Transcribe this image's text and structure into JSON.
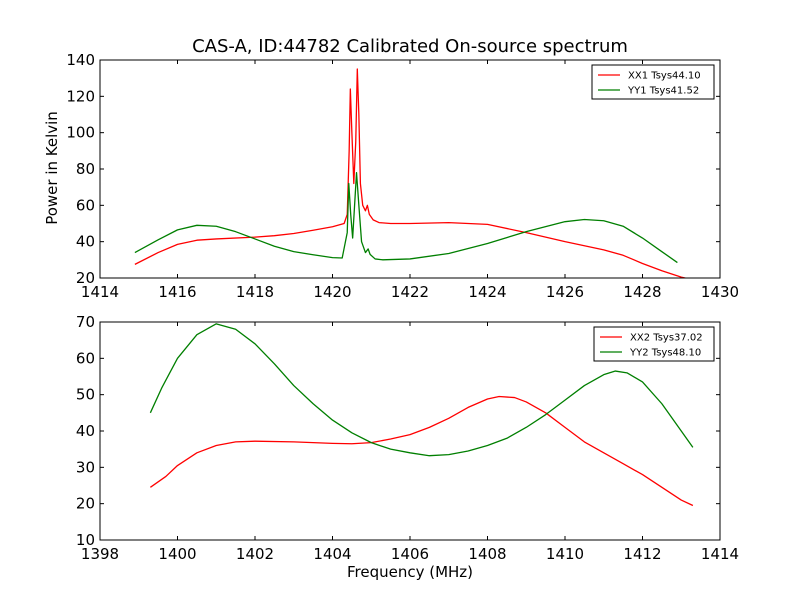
{
  "figure": {
    "title": "CAS-A, ID:44782 Calibrated On-source spectrum",
    "xlabel": "Frequency (MHz)",
    "ylabel": "Power in Kelvin"
  },
  "chart_data": [
    {
      "type": "line",
      "title": "CAS-A, ID:44782 Calibrated On-source spectrum",
      "ylabel": "Power in Kelvin",
      "xlabel": "",
      "xlim": [
        1414,
        1430
      ],
      "ylim": [
        20,
        140
      ],
      "xticks": [
        1414,
        1416,
        1418,
        1420,
        1422,
        1424,
        1426,
        1428,
        1430
      ],
      "yticks": [
        20,
        40,
        60,
        80,
        100,
        120,
        140
      ],
      "grid": false,
      "legend_position": "top-right",
      "series": [
        {
          "name": "XX1 Tsys44.10",
          "color": "#ff0000",
          "points": [
            [
              1414.9,
              27.5
            ],
            [
              1415.5,
              34
            ],
            [
              1416,
              38.5
            ],
            [
              1416.5,
              40.8
            ],
            [
              1417,
              41.5
            ],
            [
              1418,
              42.5
            ],
            [
              1418.5,
              43.3
            ],
            [
              1419,
              44.5
            ],
            [
              1419.5,
              46.3
            ],
            [
              1420,
              48.2
            ],
            [
              1420.3,
              50
            ],
            [
              1420.38,
              55
            ],
            [
              1420.43,
              90
            ],
            [
              1420.46,
              124
            ],
            [
              1420.5,
              100
            ],
            [
              1420.55,
              72
            ],
            [
              1420.6,
              95
            ],
            [
              1420.64,
              135
            ],
            [
              1420.68,
              110
            ],
            [
              1420.72,
              72
            ],
            [
              1420.78,
              60
            ],
            [
              1420.85,
              57
            ],
            [
              1420.9,
              60
            ],
            [
              1420.95,
              55
            ],
            [
              1421.05,
              52
            ],
            [
              1421.2,
              50.5
            ],
            [
              1421.5,
              50
            ],
            [
              1422,
              50
            ],
            [
              1423,
              50.5
            ],
            [
              1424,
              49.5
            ],
            [
              1425,
              45
            ],
            [
              1426,
              40
            ],
            [
              1427,
              35.5
            ],
            [
              1427.5,
              32.5
            ],
            [
              1428,
              28
            ],
            [
              1428.5,
              24
            ],
            [
              1429,
              20.5
            ],
            [
              1429.3,
              19
            ]
          ]
        },
        {
          "name": "YY1 Tsys41.52",
          "color": "#007f00",
          "points": [
            [
              1414.9,
              34
            ],
            [
              1415.5,
              41
            ],
            [
              1416,
              46.5
            ],
            [
              1416.5,
              49
            ],
            [
              1417,
              48.5
            ],
            [
              1417.5,
              45.5
            ],
            [
              1418,
              41.5
            ],
            [
              1418.5,
              37.5
            ],
            [
              1419,
              34.5
            ],
            [
              1419.5,
              32.8
            ],
            [
              1420,
              31.2
            ],
            [
              1420.25,
              31
            ],
            [
              1420.38,
              45
            ],
            [
              1420.42,
              72
            ],
            [
              1420.47,
              55
            ],
            [
              1420.52,
              42
            ],
            [
              1420.57,
              60
            ],
            [
              1420.62,
              78
            ],
            [
              1420.68,
              60
            ],
            [
              1420.75,
              40
            ],
            [
              1420.85,
              34
            ],
            [
              1420.92,
              36
            ],
            [
              1420.97,
              33
            ],
            [
              1421.1,
              30.5
            ],
            [
              1421.3,
              30
            ],
            [
              1422,
              30.5
            ],
            [
              1423,
              33.5
            ],
            [
              1424,
              39
            ],
            [
              1425,
              45.5
            ],
            [
              1426,
              51
            ],
            [
              1426.5,
              52.2
            ],
            [
              1427,
              51.5
            ],
            [
              1427.5,
              48.5
            ],
            [
              1428,
              42
            ],
            [
              1428.5,
              34.5
            ],
            [
              1428.9,
              28.5
            ]
          ]
        }
      ]
    },
    {
      "type": "line",
      "title": "",
      "xlabel": "Frequency (MHz)",
      "ylabel": "",
      "xlim": [
        1398,
        1414
      ],
      "ylim": [
        10,
        70
      ],
      "xticks": [
        1398,
        1400,
        1402,
        1404,
        1406,
        1408,
        1410,
        1412,
        1414
      ],
      "yticks": [
        10,
        20,
        30,
        40,
        50,
        60,
        70
      ],
      "grid": false,
      "legend_position": "top-right",
      "series": [
        {
          "name": "XX2 Tsys37.02",
          "color": "#ff0000",
          "points": [
            [
              1399.3,
              24.5
            ],
            [
              1399.7,
              27.5
            ],
            [
              1400,
              30.5
            ],
            [
              1400.5,
              34
            ],
            [
              1401,
              36
            ],
            [
              1401.5,
              37
            ],
            [
              1402,
              37.2
            ],
            [
              1403,
              37
            ],
            [
              1404,
              36.6
            ],
            [
              1404.5,
              36.5
            ],
            [
              1405,
              36.8
            ],
            [
              1405.5,
              37.8
            ],
            [
              1406,
              39
            ],
            [
              1406.5,
              41
            ],
            [
              1407,
              43.5
            ],
            [
              1407.5,
              46.5
            ],
            [
              1408,
              48.8
            ],
            [
              1408.3,
              49.5
            ],
            [
              1408.7,
              49.2
            ],
            [
              1409,
              48
            ],
            [
              1409.5,
              45
            ],
            [
              1410,
              41
            ],
            [
              1410.5,
              37
            ],
            [
              1411,
              34
            ],
            [
              1411.5,
              31
            ],
            [
              1412,
              28
            ],
            [
              1412.5,
              24.5
            ],
            [
              1413,
              21
            ],
            [
              1413.3,
              19.5
            ]
          ]
        },
        {
          "name": "YY2 Tsys48.10",
          "color": "#007f00",
          "points": [
            [
              1399.3,
              45
            ],
            [
              1399.6,
              52
            ],
            [
              1400,
              60
            ],
            [
              1400.5,
              66.5
            ],
            [
              1401,
              69.5
            ],
            [
              1401.5,
              68
            ],
            [
              1402,
              64
            ],
            [
              1402.5,
              58.5
            ],
            [
              1403,
              52.5
            ],
            [
              1403.5,
              47.5
            ],
            [
              1404,
              43
            ],
            [
              1404.5,
              39.5
            ],
            [
              1405,
              36.8
            ],
            [
              1405.5,
              35
            ],
            [
              1406,
              34
            ],
            [
              1406.5,
              33.2
            ],
            [
              1407,
              33.5
            ],
            [
              1407.5,
              34.5
            ],
            [
              1408,
              36
            ],
            [
              1408.5,
              38
            ],
            [
              1409,
              41
            ],
            [
              1409.5,
              44.5
            ],
            [
              1410,
              48.5
            ],
            [
              1410.5,
              52.5
            ],
            [
              1411,
              55.5
            ],
            [
              1411.3,
              56.5
            ],
            [
              1411.6,
              56
            ],
            [
              1412,
              53.5
            ],
            [
              1412.5,
              47.5
            ],
            [
              1413,
              40
            ],
            [
              1413.3,
              35.5
            ]
          ]
        }
      ]
    }
  ]
}
